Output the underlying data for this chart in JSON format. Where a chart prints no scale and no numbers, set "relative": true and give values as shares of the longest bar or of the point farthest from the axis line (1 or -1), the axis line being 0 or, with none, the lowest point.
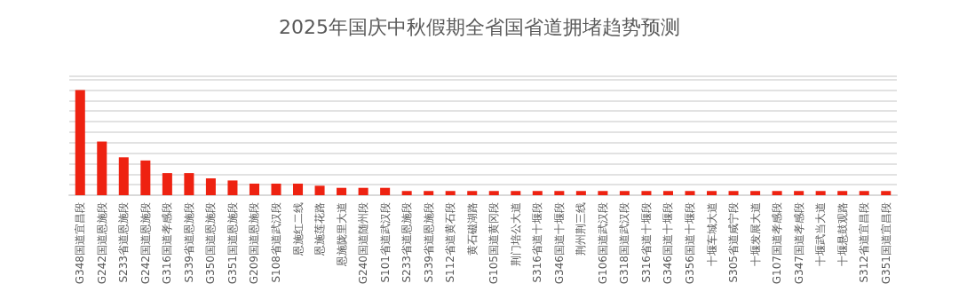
{
  "chart_data": {
    "type": "bar",
    "title": "2025年国庆中秋假期全省国省道拥堵趋势预测",
    "categories": [
      "G348国道宜昌段",
      "G242国道恩施段",
      "S233省道恩施段",
      "G242国道恩施段",
      "G316国道孝感段",
      "S339省道恩施段",
      "G350国道恩施段",
      "G351国道恩施段",
      "G209国道恩施段",
      "S108省道武汉段",
      "恩施红二线",
      "恩施莲花路",
      "恩施陇里大道",
      "G240国道随州段",
      "S101省道武汉段",
      "S233省道恩施段",
      "S339省道恩施段",
      "S112省道黄石段",
      "黄石磁湖路",
      "G105国道黄冈段",
      "荆门培公大道",
      "S316省道十堰段",
      "G346国道十堰段",
      "荆州荆三线",
      "G106国道武汉段",
      "G318国道武汉段",
      "S316省道十堰段",
      "G346国道十堰段",
      "G356国道十堰段",
      "十堰车城大道",
      "S305省道咸宁段",
      "十堰发展大道",
      "G107国道孝感段",
      "G347国道孝感段",
      "十堰武当大道",
      "十堰悬鼓观路",
      "S312省道宜昌段",
      "G351国道宜昌段"
    ],
    "values": [
      1,
      0.51,
      0.36,
      0.33,
      0.21,
      0.21,
      0.16,
      0.14,
      0.11,
      0.11,
      0.11,
      0.09,
      0.07,
      0.07,
      0.07,
      0.04,
      0.04,
      0.04,
      0.04,
      0.04,
      0.04,
      0.04,
      0.04,
      0.04,
      0.04,
      0.04,
      0.04,
      0.04,
      0.04,
      0.04,
      0.04,
      0.04,
      0.04,
      0.04,
      0.04,
      0.04,
      0.04,
      0.04
    ],
    "color": "#ee2211",
    "relative": true,
    "grid": "y"
  }
}
